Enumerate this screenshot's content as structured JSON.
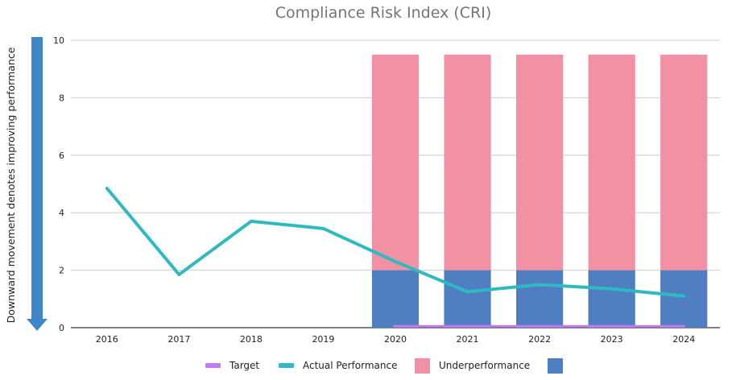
{
  "chart_data": {
    "type": "bar",
    "title": "Compliance Risk Index (CRI)",
    "side_label": "Downward movement denotes improving performance",
    "xlabel": "",
    "ylabel": "",
    "categories": [
      "2016",
      "2017",
      "2018",
      "2019",
      "2020",
      "2021",
      "2022",
      "2023",
      "2024"
    ],
    "ylim": [
      0,
      10
    ],
    "yticks": [
      0,
      2,
      4,
      6,
      8,
      10
    ],
    "grid": true,
    "legend_position": "bottom",
    "series": [
      {
        "name": "Target",
        "type": "line",
        "color": "#c27bf5",
        "values": [
          null,
          null,
          null,
          null,
          0.05,
          0.05,
          0.05,
          0.05,
          0.05
        ]
      },
      {
        "name": "Actual Performance",
        "type": "line",
        "color": "#2fb9c1",
        "values": [
          4.85,
          1.85,
          3.7,
          3.45,
          2.3,
          1.25,
          1.5,
          1.35,
          1.1
        ]
      },
      {
        "name": "Underperformance",
        "type": "bar",
        "stack": "risk",
        "color": "#f291a3",
        "values": [
          null,
          null,
          null,
          null,
          7.5,
          7.5,
          7.5,
          7.5,
          7.5
        ]
      },
      {
        "name": "",
        "type": "bar",
        "stack": "risk",
        "color": "#4f7fc0",
        "values": [
          null,
          null,
          null,
          null,
          2,
          2,
          2,
          2,
          2
        ]
      }
    ],
    "arrow_color": "#3f86c8"
  }
}
